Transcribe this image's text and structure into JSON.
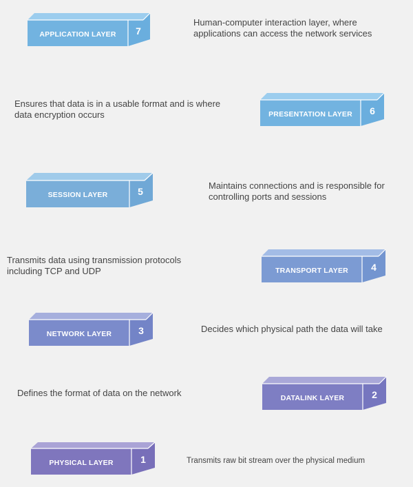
{
  "layers": [
    {
      "name": "APPLICATION LAYER",
      "number": "7",
      "description": "Human-computer interaction layer, where applications can access the network services",
      "color": "#72b3e0"
    },
    {
      "name": "PRESENTATION LAYER",
      "number": "6",
      "description": "Ensures that data is in a usable format and is where data encryption occurs",
      "color": "#72b3e0"
    },
    {
      "name": "SESSION LAYER",
      "number": "5",
      "description": "Maintains connections and is responsible for controlling ports and sessions",
      "color": "#7aaed9"
    },
    {
      "name": "TRANSPORT LAYER",
      "number": "4",
      "description": "Transmits data using transmission protocols including TCP and UDP",
      "color": "#7c9bd3"
    },
    {
      "name": "NETWORK LAYER",
      "number": "3",
      "description": "Decides which physical path the data will take",
      "color": "#7b8bcb"
    },
    {
      "name": "DATALINK LAYER",
      "number": "2",
      "description": "Defines the format of data on the network",
      "color": "#7e7ec3"
    },
    {
      "name": "PHYSICAL LAYER",
      "number": "1",
      "description": "Transmits raw bit stream over the physical medium",
      "color": "#7f76bd"
    }
  ]
}
